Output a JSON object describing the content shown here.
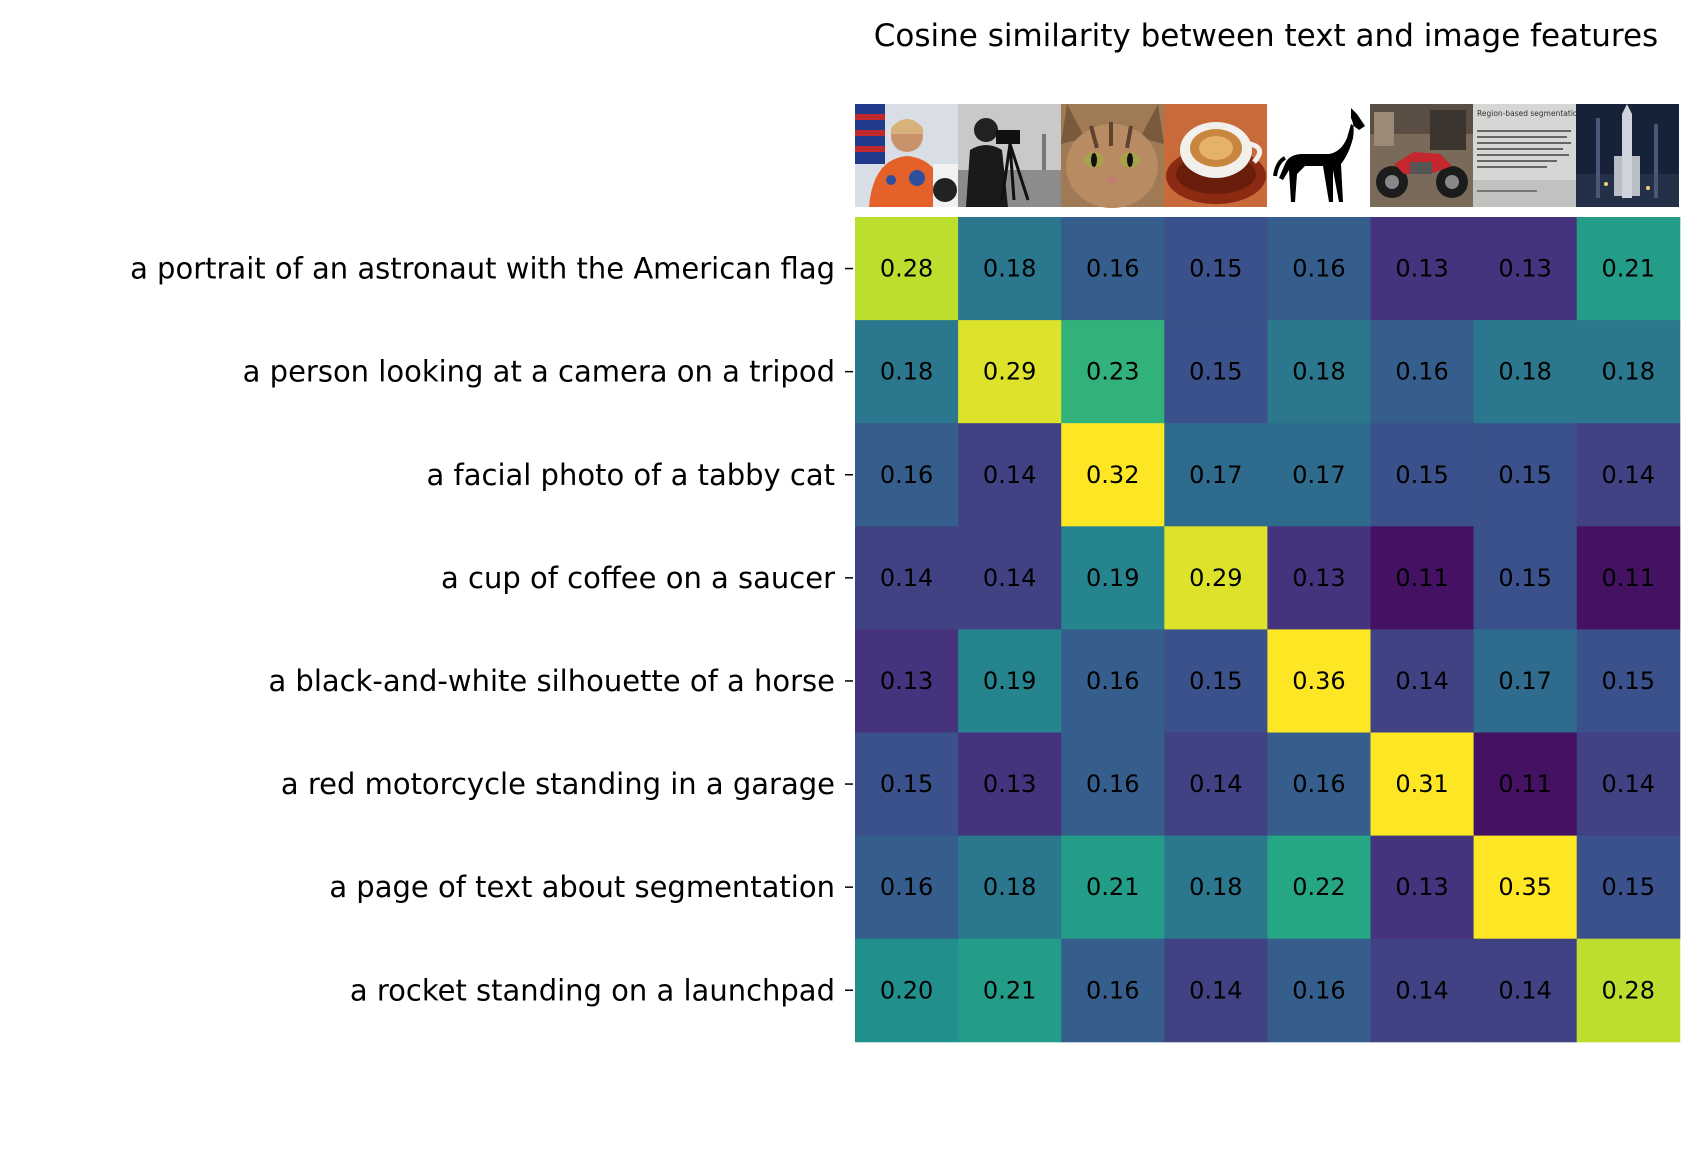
{
  "chart_data": {
    "type": "heatmap",
    "title": "Cosine similarity between text and image features",
    "rows": [
      "a portrait of an astronaut with the American flag",
      "a person looking at a camera on a tripod",
      "a facial photo of a tabby cat",
      "a cup of coffee on a saucer",
      "a black-and-white silhouette of a horse",
      "a red motorcycle standing in a garage",
      "a page of text about segmentation",
      "a rocket standing on a launchpad"
    ],
    "columns": [
      "astronaut",
      "camera",
      "cat",
      "coffee",
      "horse",
      "motorcycle",
      "page",
      "rocket"
    ],
    "values": [
      [
        0.28,
        0.18,
        0.16,
        0.15,
        0.16,
        0.13,
        0.13,
        0.21
      ],
      [
        0.18,
        0.29,
        0.23,
        0.15,
        0.18,
        0.16,
        0.18,
        0.18
      ],
      [
        0.16,
        0.14,
        0.32,
        0.17,
        0.17,
        0.15,
        0.15,
        0.14
      ],
      [
        0.14,
        0.14,
        0.19,
        0.29,
        0.13,
        0.11,
        0.15,
        0.11
      ],
      [
        0.13,
        0.19,
        0.16,
        0.15,
        0.36,
        0.14,
        0.17,
        0.15
      ],
      [
        0.15,
        0.13,
        0.16,
        0.14,
        0.16,
        0.31,
        0.11,
        0.14
      ],
      [
        0.16,
        0.18,
        0.21,
        0.18,
        0.22,
        0.13,
        0.35,
        0.15
      ],
      [
        0.2,
        0.21,
        0.16,
        0.14,
        0.16,
        0.14,
        0.14,
        0.28
      ]
    ],
    "vmin": 0.1,
    "vmax": 0.3,
    "colormap": "viridis",
    "image_thumbnail_text": "Region-based segmentation"
  }
}
